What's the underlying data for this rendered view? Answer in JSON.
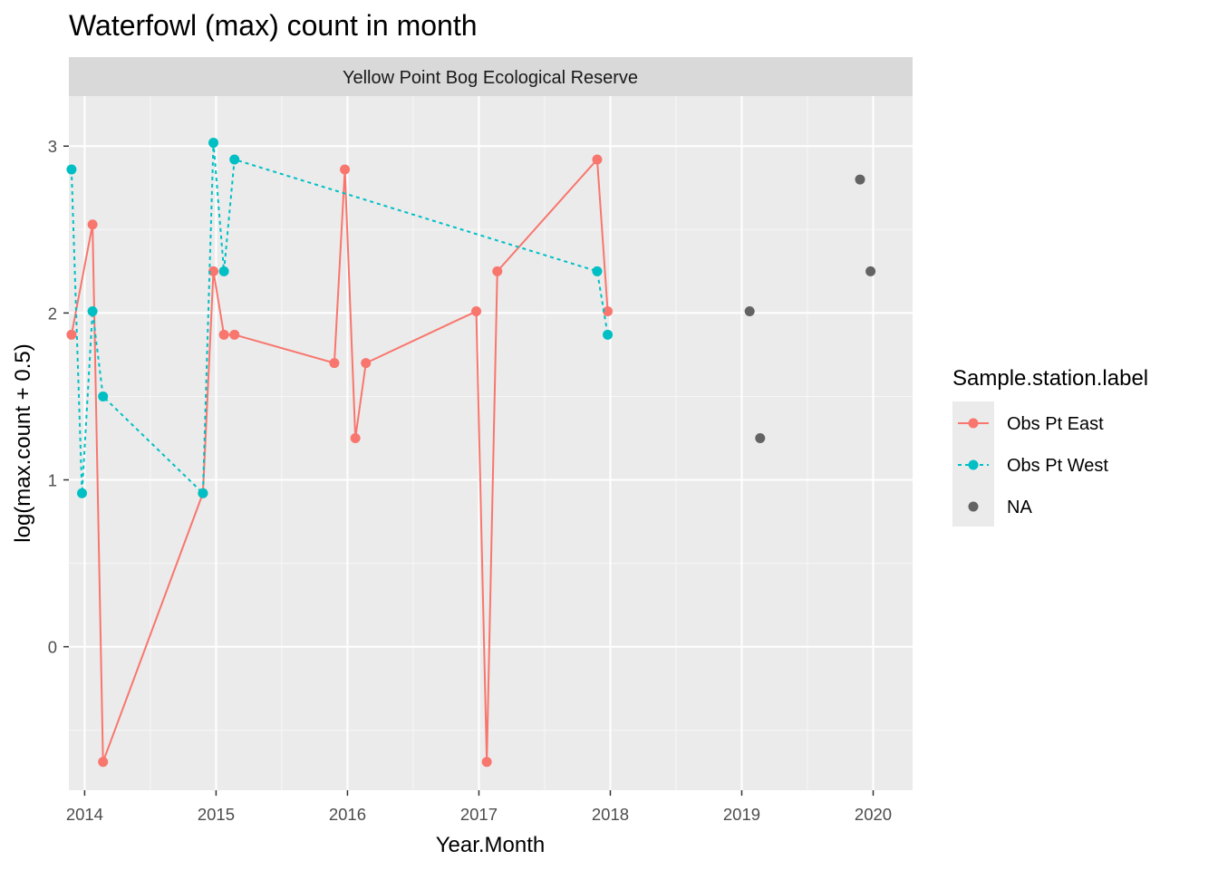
{
  "chart_data": {
    "type": "line",
    "title": "Waterfowl (max) count in month",
    "facet_label": "Yellow Point Bog Ecological Reserve",
    "xlabel": "Year.Month",
    "ylabel": "log(max.count + 0.5)",
    "xlim": [
      2013.88,
      2020.3
    ],
    "ylim": [
      -0.86,
      3.3
    ],
    "x_ticks": [
      2014,
      2015,
      2016,
      2017,
      2018,
      2019,
      2020
    ],
    "x_tick_labels": [
      "2014",
      "2015",
      "2016",
      "2017",
      "2018",
      "2019",
      "2020"
    ],
    "y_ticks": [
      0,
      1,
      2,
      3
    ],
    "y_tick_labels": [
      "0",
      "1",
      "2",
      "3"
    ],
    "grid": true,
    "legend": {
      "title": "Sample.station.label",
      "position": "right"
    },
    "series": [
      {
        "name": "Obs Pt East",
        "color": "#F8766D",
        "line": "solid",
        "points": [
          [
            2013.9,
            1.87
          ],
          [
            2014.06,
            2.53
          ],
          [
            2014.14,
            -0.69
          ],
          [
            2014.9,
            0.92
          ],
          [
            2014.98,
            2.25
          ],
          [
            2015.06,
            1.87
          ],
          [
            2015.14,
            1.87
          ],
          [
            2015.9,
            1.7
          ],
          [
            2015.98,
            2.86
          ],
          [
            2016.06,
            1.25
          ],
          [
            2016.14,
            1.7
          ],
          [
            2016.98,
            2.01
          ],
          [
            2017.06,
            -0.69
          ],
          [
            2017.14,
            2.25
          ],
          [
            2017.9,
            2.92
          ],
          [
            2017.98,
            2.01
          ]
        ]
      },
      {
        "name": "Obs Pt West",
        "color": "#00BFC4",
        "line": "dashed",
        "points": [
          [
            2013.9,
            2.86
          ],
          [
            2013.98,
            0.92
          ],
          [
            2014.06,
            2.01
          ],
          [
            2014.14,
            1.5
          ],
          [
            2014.9,
            0.92
          ],
          [
            2014.98,
            3.02
          ],
          [
            2015.06,
            2.25
          ],
          [
            2015.14,
            2.92
          ],
          [
            2017.9,
            2.25
          ],
          [
            2017.98,
            1.87
          ]
        ]
      },
      {
        "name": "NA",
        "color": "#636363",
        "line": "none",
        "points": [
          [
            2019.06,
            2.01
          ],
          [
            2019.14,
            1.25
          ],
          [
            2019.9,
            2.8
          ],
          [
            2019.98,
            2.25
          ]
        ]
      }
    ]
  }
}
